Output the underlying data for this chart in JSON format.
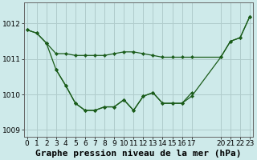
{
  "background_color": "#ceeaea",
  "grid_color": "#b0cccc",
  "line_color": "#1a5c1a",
  "marker_color": "#1a5c1a",
  "title": "Graphe pression niveau de la mer (hPa)",
  "ylim": [
    1008.8,
    1012.6
  ],
  "yticks": [
    1009,
    1010,
    1011,
    1012
  ],
  "xticks": [
    0,
    1,
    2,
    3,
    4,
    5,
    6,
    7,
    8,
    9,
    10,
    11,
    12,
    13,
    14,
    15,
    16,
    17,
    20,
    21,
    22,
    23
  ],
  "xlim": [
    -0.3,
    23.3
  ],
  "series": [
    {
      "x": [
        0,
        1,
        2
      ],
      "y": [
        1011.82,
        1011.73,
        1011.45
      ]
    },
    {
      "x": [
        0,
        1,
        2,
        3,
        4,
        5,
        6,
        7,
        8,
        9,
        10,
        11,
        12,
        13,
        14,
        15,
        16,
        17,
        20,
        21,
        22,
        23
      ],
      "y": [
        1011.82,
        1011.73,
        1011.45,
        1010.7,
        1010.25,
        1009.75,
        1009.55,
        1009.55,
        1009.65,
        1009.65,
        1009.85,
        1009.55,
        1009.95,
        1010.05,
        1009.75,
        1009.75,
        1009.75,
        1009.95,
        1011.05,
        1011.5,
        1011.6,
        1012.2
      ]
    },
    {
      "x": [
        2,
        3,
        4,
        5,
        6,
        7,
        8,
        9,
        10,
        11,
        12,
        13,
        14,
        15,
        16,
        17,
        20,
        21,
        22,
        23
      ],
      "y": [
        1011.45,
        1011.15,
        1011.15,
        1011.1,
        1011.1,
        1011.1,
        1011.1,
        1011.15,
        1011.2,
        1011.2,
        1011.15,
        1011.1,
        1011.05,
        1011.05,
        1011.05,
        1011.05,
        1011.05,
        1011.5,
        1011.6,
        1012.2
      ]
    },
    {
      "x": [
        3,
        4,
        5,
        6,
        7,
        8,
        9,
        10,
        11,
        12,
        13,
        14,
        15,
        16,
        17
      ],
      "y": [
        1010.7,
        1010.25,
        1009.75,
        1009.55,
        1009.55,
        1009.65,
        1009.65,
        1009.85,
        1009.55,
        1009.95,
        1010.05,
        1009.75,
        1009.75,
        1009.75,
        1010.05
      ]
    }
  ],
  "title_fontsize": 8,
  "tick_fontsize": 6.5
}
